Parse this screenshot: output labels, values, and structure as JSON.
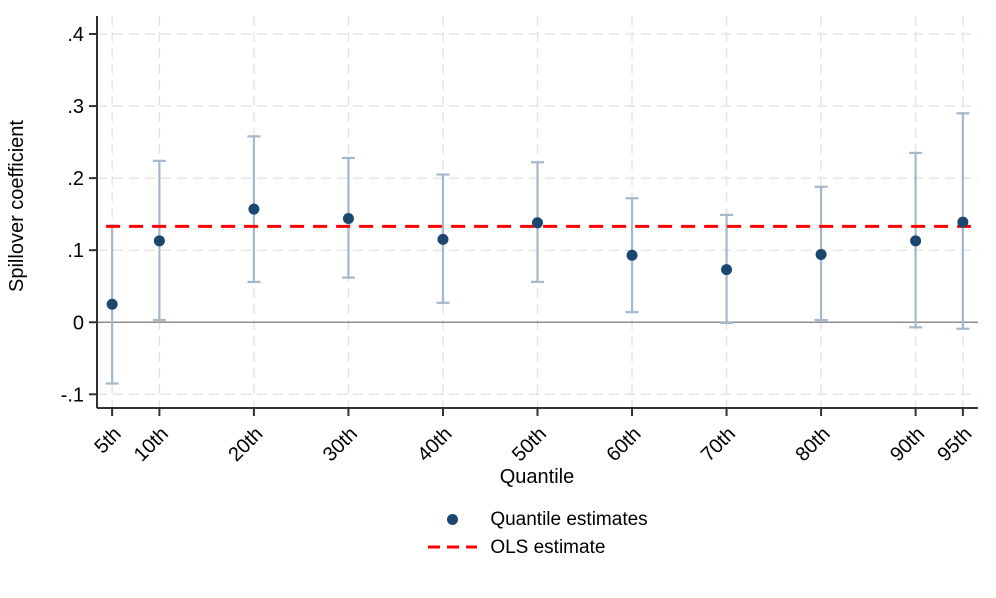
{
  "chart_data": {
    "type": "scatter",
    "title": "",
    "xlabel": "Quantile",
    "ylabel": "Spillover coefficient",
    "x_values": [
      5,
      10,
      20,
      30,
      40,
      50,
      60,
      70,
      80,
      90,
      95
    ],
    "x_tick_labels": [
      "5th",
      "10th",
      "20th",
      "30th",
      "40th",
      "50th",
      "60th",
      "70th",
      "80th",
      "90th",
      "95th"
    ],
    "xlim": [
      3.4,
      96.6
    ],
    "y_ticks": [
      -0.1,
      0,
      0.1,
      0.2,
      0.3,
      0.4
    ],
    "y_tick_labels": [
      "-.1",
      "0",
      ".1",
      ".2",
      ".3",
      ".4"
    ],
    "ylim": [
      -0.119,
      0.425
    ],
    "grid": true,
    "zero_reference_line": 0,
    "series": [
      {
        "name": "Quantile estimates",
        "type": "scatter-with-ci",
        "estimates": [
          0.025,
          0.113,
          0.157,
          0.144,
          0.115,
          0.138,
          0.093,
          0.073,
          0.094,
          0.113,
          0.139
        ],
        "ci_low": [
          -0.085,
          0.003,
          0.056,
          0.062,
          0.027,
          0.056,
          0.014,
          -0.001,
          0.003,
          -0.007,
          -0.009
        ],
        "ci_high": [
          0.134,
          0.224,
          0.258,
          0.228,
          0.205,
          0.222,
          0.172,
          0.149,
          0.188,
          0.235,
          0.29
        ]
      },
      {
        "name": "OLS estimate",
        "type": "horizontal-dashed-line",
        "value": 0.133
      }
    ],
    "legend": {
      "position": "bottom-center"
    },
    "colors": {
      "marker": "#1a476f",
      "ci_bar": "#a3b8cc",
      "ols_line": "#fe0000",
      "zero_line": "#8f8f8f",
      "grid_line": "#e4e4e4",
      "axis_line": "#303030",
      "text": "#000000",
      "background": "#ffffff"
    }
  }
}
